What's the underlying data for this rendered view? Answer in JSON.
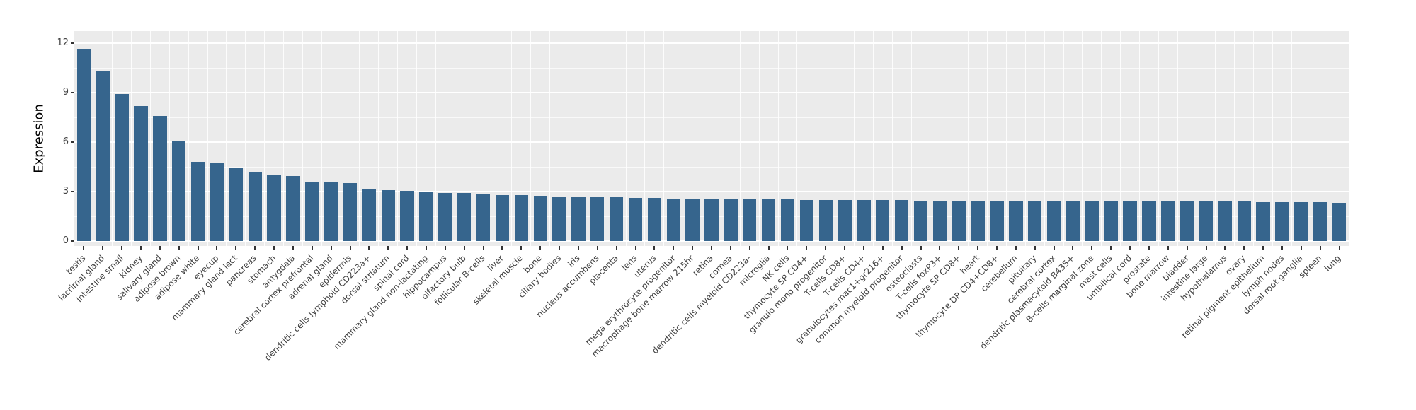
{
  "chart_data": {
    "type": "bar",
    "title": "",
    "xlabel": "",
    "ylabel": "Expression",
    "ylim": [
      0,
      12
    ],
    "yticks": [
      0,
      3,
      6,
      9,
      12
    ],
    "minor_gridlines": [
      1.5,
      4.5,
      7.5,
      10.5
    ],
    "grid": true,
    "legend": false,
    "bar_color": "#36658D",
    "panel_bg": "#EBEBEB",
    "categories": [
      "testis",
      "lacrimal gland",
      "intestine small",
      "kidney",
      "salivary gland",
      "adipose brown",
      "adipose white",
      "eyecup",
      "mammary gland lact",
      "pancreas",
      "stomach",
      "amygdala",
      "cerebral cortex prefrontal",
      "adrenal gland",
      "epidermis",
      "dendritic cells lymphoid CD223a+",
      "dorsal striatum",
      "spinal cord",
      "mammary gland non-lactating",
      "hippocampus",
      "olfactory bulb",
      "follicular B-cells",
      "liver",
      "skeletal muscle",
      "bone",
      "ciliary bodies",
      "iris",
      "nucleus accumbens",
      "placenta",
      "lens",
      "uterus",
      "mega erythrocyte progenitor",
      "macrophage bone marrow 215hr",
      "retina",
      "cornea",
      "dendritic cells myeloid CD223a-",
      "microglia",
      "NK cells",
      "thymocyte SP CD4+",
      "granulo mono progenitor",
      "T-cells CD8+",
      "T-cells CD4+",
      "granulocytes mac1+gr216+",
      "common myeloid progenitor",
      "osteoclasts",
      "T-cells foxP3+",
      "thymocyte SP CD8+",
      "heart",
      "thymocyte DP CD4+CD8+",
      "cerebellum",
      "pituitary",
      "cerebral cortex",
      "dendritic plasmacytoid B435+",
      "B-cells marginal zone",
      "mast cells",
      "umbilical cord",
      "prostate",
      "bone marrow",
      "bladder",
      "intestine large",
      "hypothalamus",
      "ovary",
      "retinal pigment epithelium",
      "lymph nodes",
      "dorsal root ganglia",
      "spleen",
      "lung"
    ],
    "values": [
      11.6,
      10.3,
      8.9,
      8.2,
      7.6,
      6.1,
      4.8,
      4.7,
      4.4,
      4.2,
      4.0,
      3.95,
      3.6,
      3.55,
      3.5,
      3.17,
      3.1,
      3.05,
      3.0,
      2.92,
      2.9,
      2.85,
      2.8,
      2.78,
      2.75,
      2.72,
      2.7,
      2.68,
      2.65,
      2.62,
      2.6,
      2.58,
      2.56,
      2.55,
      2.55,
      2.54,
      2.52,
      2.52,
      2.5,
      2.5,
      2.5,
      2.48,
      2.48,
      2.48,
      2.46,
      2.46,
      2.45,
      2.45,
      2.45,
      2.44,
      2.44,
      2.43,
      2.42,
      2.42,
      2.42,
      2.4,
      2.4,
      2.4,
      2.4,
      2.38,
      2.38,
      2.38,
      2.36,
      2.36,
      2.35,
      2.35,
      2.3
    ]
  }
}
